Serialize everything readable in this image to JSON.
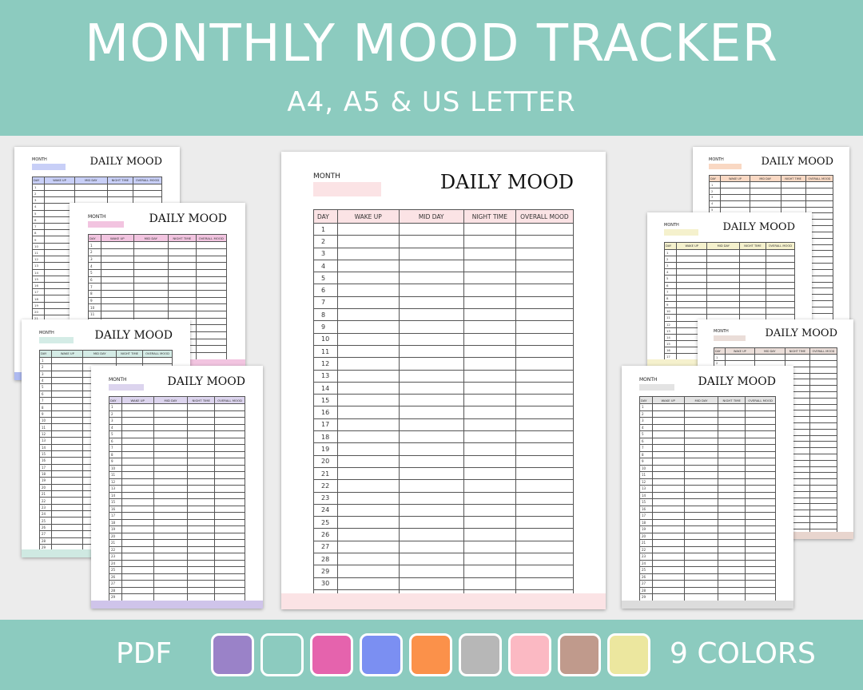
{
  "header": {
    "title": "MONTHLY MOOD TRACKER",
    "subtitle": "A4, A5 & US LETTER"
  },
  "footer": {
    "format": "PDF",
    "colors_label": "9 COLORS",
    "swatches": [
      "#9a82c8",
      "#8ccbbf",
      "#e563ad",
      "#7b8ff2",
      "#fb914a",
      "#b7b7b7",
      "#fbb9c3",
      "#c09a8c",
      "#ece79f"
    ]
  },
  "template": {
    "month_label": "MONTH",
    "title": "DAILY MOOD",
    "columns": [
      "DAY",
      "WAKE UP",
      "MID DAY",
      "NIGHT TIME",
      "OVERALL MOOD"
    ],
    "days": [
      "1",
      "2",
      "3",
      "4",
      "5",
      "6",
      "7",
      "8",
      "9",
      "10",
      "11",
      "12",
      "13",
      "14",
      "15",
      "16",
      "17",
      "18",
      "19",
      "20",
      "21",
      "22",
      "23",
      "24",
      "25",
      "26",
      "27",
      "28",
      "29",
      "30",
      "31"
    ]
  },
  "pages": [
    {
      "id": "blue",
      "accent": "#c8cff7",
      "band": "#aebaf0"
    },
    {
      "id": "pink",
      "accent": "#f2c4e0",
      "band": "#f2c4e0"
    },
    {
      "id": "mint",
      "accent": "#d4ece6",
      "band": "#cfe9e2"
    },
    {
      "id": "purple",
      "accent": "#dcd4ee",
      "band": "#cfc4ea"
    },
    {
      "id": "rose",
      "accent": "#fbe3e5",
      "band": "#fbe3e5"
    },
    {
      "id": "orange",
      "accent": "#f9d8c3",
      "band": "#f9d8c3"
    },
    {
      "id": "yellow",
      "accent": "#f5f1cd",
      "band": "#f5f1cd"
    },
    {
      "id": "taupe",
      "accent": "#eaddd8",
      "band": "#e8d5ce"
    },
    {
      "id": "gray",
      "accent": "#e3e3e3",
      "band": "#dcdcdc"
    }
  ]
}
